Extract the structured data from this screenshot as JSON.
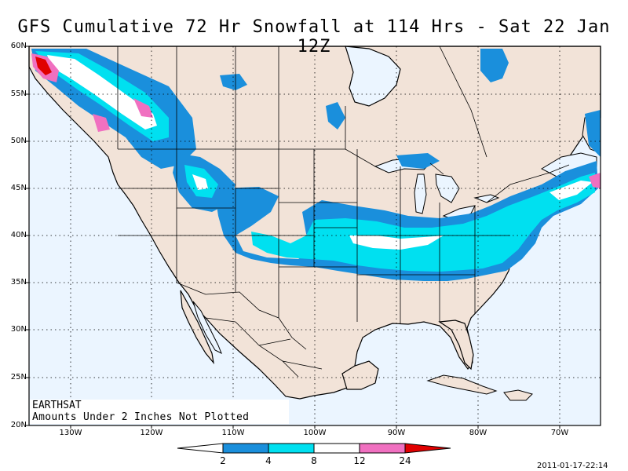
{
  "title": "GFS Cumulative 72 Hr Snowfall at 114 Hrs - Sat 22 Jan 12Z",
  "credit": "EARTHSAT",
  "note": "Amounts Under 2 Inches Not Plotted",
  "timestamp": "2011-01-17-22:14",
  "lat_labels": [
    "60N",
    "55N",
    "50N",
    "45N",
    "40N",
    "35N",
    "30N",
    "25N",
    "20N"
  ],
  "lon_labels": [
    "130W",
    "120W",
    "110W",
    "100W",
    "90W",
    "80W",
    "70W"
  ],
  "legend": {
    "units": "inches",
    "thresholds": [
      "2",
      "4",
      "8",
      "12",
      "24"
    ],
    "colors": [
      "#ffffff",
      "#1a8fdc",
      "#00e0f0",
      "#ffffff",
      "#f070c0",
      "#e00000"
    ]
  },
  "colors": {
    "land": "#f2e3d8",
    "ocean": "#ebf5ff",
    "outline": "#000000",
    "grid": "#000000"
  }
}
